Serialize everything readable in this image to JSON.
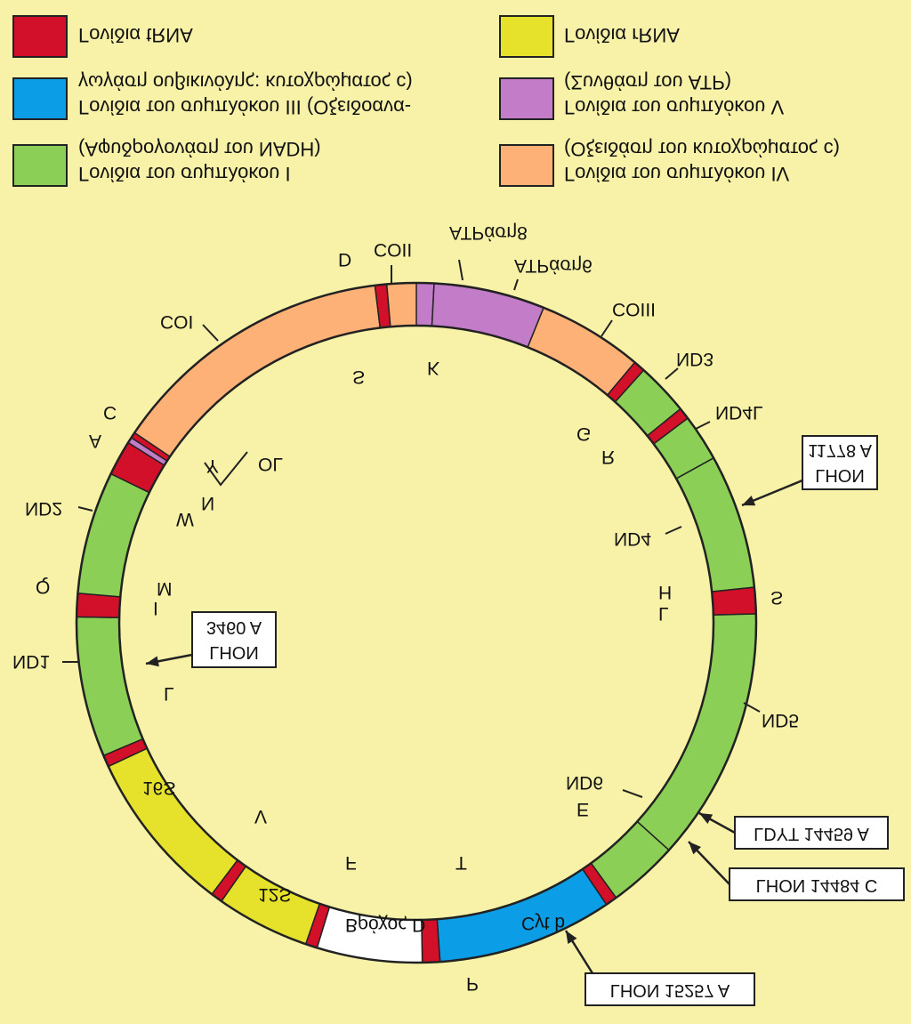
{
  "legend": [
    {
      "color": "#d2102a",
      "lines": [
        "Γονίδια tRNA"
      ]
    },
    {
      "color": "#e6e22c",
      "lines": [
        "Γονίδια rRNA"
      ]
    },
    {
      "color": "#0b9ee6",
      "lines": [
        "Γονίδια του συμπλόκου III (Οξειδοανα-",
        "γωγάση ουβικινόλης: κυτοχρώματος c)"
      ]
    },
    {
      "color": "#c27cc8",
      "lines": [
        "Γονίδια του συμπλόκου V",
        "(Συνθάση του ATP)"
      ]
    },
    {
      "color": "#8ccf56",
      "lines": [
        "Γονίδια του συμπλόκου I",
        "(Αφυδρογονάση του NADH)"
      ]
    },
    {
      "color": "#fdb177",
      "lines": [
        "Γονίδια του συμπλόκου IV",
        "(Οξειδάση του κυτοχρώματος c)"
      ]
    }
  ],
  "genes": {
    "COI": "COI",
    "COII": "COII",
    "ATP8": "ATPάση8",
    "ATP6": "ATPάση6",
    "COIII": "COIII",
    "ND3": "ND3",
    "ND4L": "ND4L",
    "ND4": "ND4",
    "ND5": "ND5",
    "ND6": "ND6",
    "CYTB": "Cyt b",
    "DLOOP": "Βρόχος D",
    "RNA12S": "12S",
    "RNA16S": "16S",
    "ND1": "ND1",
    "ND2": "ND2",
    "OL": "OL"
  },
  "trna": {
    "D": "D",
    "S1": "S",
    "K": "K",
    "G": "G",
    "R": "R",
    "H": "H",
    "S2": "S",
    "L2": "L",
    "E": "E",
    "T": "T",
    "P": "P",
    "F": "F",
    "V": "V",
    "L1": "L",
    "I": "I",
    "Q": "Q",
    "M": "M",
    "W": "W",
    "A": "A",
    "N": "N",
    "C": "C",
    "Y": "Y"
  },
  "mutations": [
    "11778 A",
    "LHON",
    "LDYT 14459 A",
    "LHON 14484 C",
    "LHON 15257 A",
    "3460 A",
    "LHON"
  ]
}
